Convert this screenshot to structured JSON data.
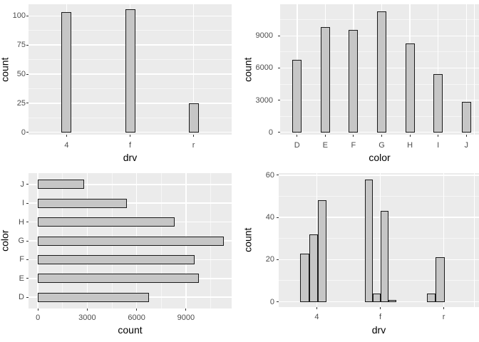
{
  "figure": {
    "description": "2x2 grid of gray ggplot-style bar charts",
    "background": "#FFFFFF"
  },
  "colors": {
    "panel_background": "#EBEBEB",
    "grid_major": "#FFFFFF",
    "grid_minor": "rgba(255,255,255,0.55)",
    "bar_fill": "#C6C6C6",
    "bar_border": "#1A1A1A",
    "tick_mark": "#333333",
    "tick_label": "#4D4D4D",
    "axis_title": "#000000"
  },
  "chart_data": [
    {
      "type": "bar",
      "position": "top-left",
      "xlabel": "drv",
      "ylabel": "count",
      "categories": [
        "4",
        "f",
        "r"
      ],
      "values": [
        103,
        106,
        25
      ],
      "y_ticks": [
        0,
        25,
        50,
        75,
        100
      ],
      "ylim": [
        -2,
        110
      ],
      "grid": "major+minor horizontal white on gray panel",
      "legend": "none"
    },
    {
      "type": "bar",
      "position": "top-right",
      "xlabel": "color",
      "ylabel": "count",
      "categories": [
        "D",
        "E",
        "F",
        "G",
        "H",
        "I",
        "J"
      ],
      "values": [
        6775,
        9797,
        9542,
        11292,
        8304,
        5422,
        2808
      ],
      "y_ticks": [
        0,
        3000,
        6000,
        9000
      ],
      "ylim": [
        -220,
        11950
      ],
      "grid": "major+minor horizontal white on gray panel",
      "legend": "none"
    },
    {
      "type": "hbar",
      "position": "bottom-left",
      "xlabel": "count",
      "ylabel": "color",
      "categories_top_to_bottom": [
        "J",
        "I",
        "H",
        "G",
        "F",
        "E",
        "D"
      ],
      "values": [
        2808,
        5422,
        8304,
        11292,
        9542,
        9797,
        6775
      ],
      "x_ticks": [
        0,
        3000,
        6000,
        9000
      ],
      "xlim": [
        -570,
        11780
      ],
      "grid": "major+minor vertical white on gray panel",
      "legend": "none"
    },
    {
      "type": "grouped_bar",
      "position": "bottom-right",
      "xlabel": "drv",
      "ylabel": "count",
      "categories": [
        "4",
        "f",
        "r"
      ],
      "groups": [
        [
          23,
          32,
          48
        ],
        [
          58,
          4,
          43,
          1
        ],
        [
          4,
          21
        ]
      ],
      "y_ticks": [
        0,
        20,
        40,
        60
      ],
      "ylim": [
        -2.5,
        61
      ],
      "grid": "major+minor horizontal white on gray panel",
      "legend": "none"
    }
  ]
}
